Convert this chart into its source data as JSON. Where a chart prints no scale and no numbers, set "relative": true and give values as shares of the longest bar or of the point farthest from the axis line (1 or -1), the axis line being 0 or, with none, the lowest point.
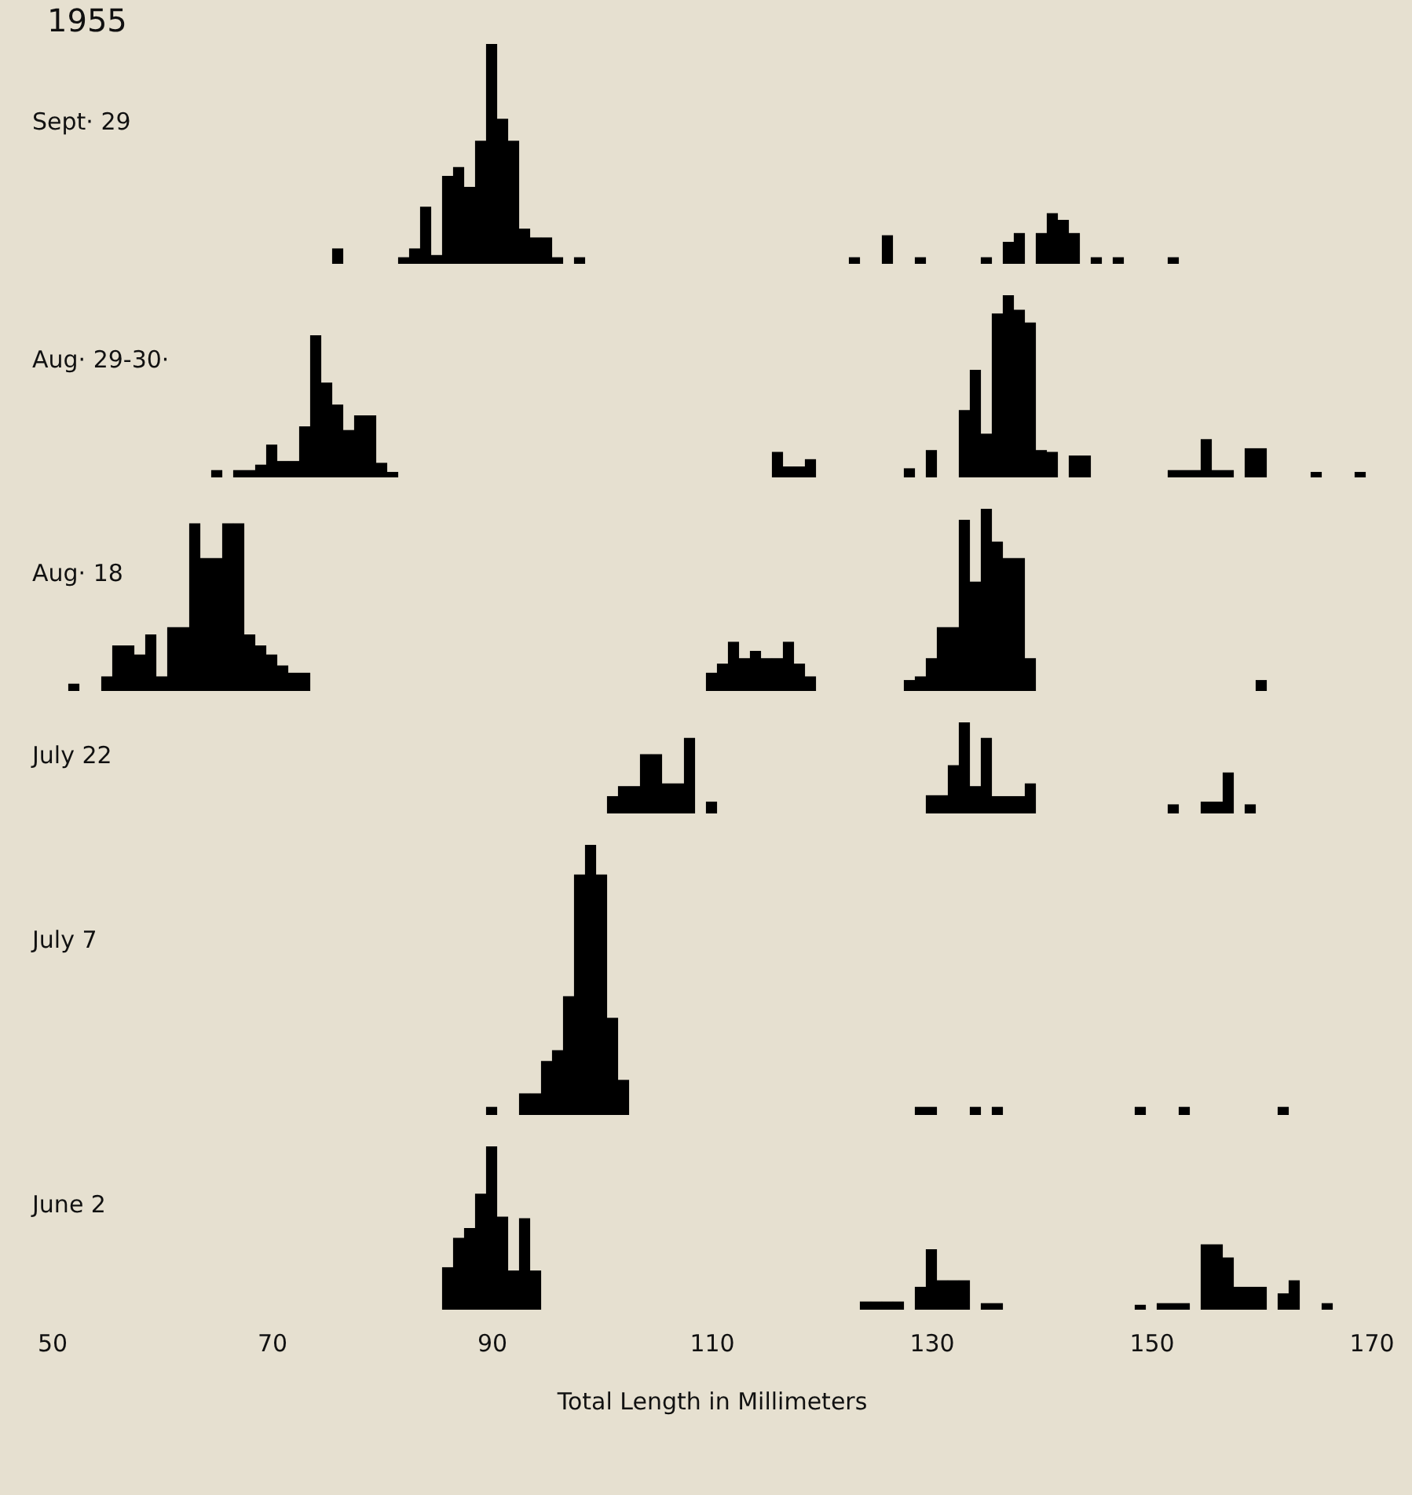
{
  "chart_data": [
    {
      "type": "bar",
      "title": "1955",
      "ylabel": "Sept· 29",
      "relative": true,
      "color": "#000000",
      "xlim": [
        50,
        170
      ],
      "xticks": [
        50,
        70,
        90,
        110,
        130,
        150,
        170
      ],
      "tick_labels": false,
      "x": [
        76,
        82,
        83,
        84,
        85,
        86,
        87,
        88,
        89,
        90,
        91,
        92,
        93,
        94,
        95,
        96,
        98,
        123,
        126,
        129,
        135,
        137,
        138,
        140,
        141,
        142,
        143,
        145,
        147,
        152
      ],
      "values": [
        0.07,
        0.03,
        0.07,
        0.26,
        0.04,
        0.4,
        0.44,
        0.35,
        0.56,
        1,
        0.66,
        0.56,
        0.16,
        0.12,
        0.12,
        0.03,
        0.03,
        0.03,
        0.13,
        0.03,
        0.03,
        0.1,
        0.14,
        0.14,
        0.23,
        0.2,
        0.14,
        0.03,
        0.03,
        0.03
      ]
    },
    {
      "type": "bar",
      "ylabel": "Aug· 29-30·",
      "relative": true,
      "color": "#000000",
      "xlim": [
        50,
        170
      ],
      "xticks": [
        50,
        70,
        90,
        110,
        130,
        150,
        170
      ],
      "tick_labels": false,
      "x": [
        65,
        67,
        68,
        69,
        70,
        71,
        72,
        73,
        74,
        75,
        76,
        77,
        78,
        79,
        80,
        81,
        116,
        117,
        118,
        119,
        128,
        130,
        133,
        134,
        135,
        136,
        137,
        138,
        139,
        140,
        141,
        143,
        144,
        152,
        153,
        154,
        155,
        156,
        157,
        159,
        160,
        165,
        169
      ],
      "values": [
        0.04,
        0.04,
        0.04,
        0.07,
        0.18,
        0.09,
        0.09,
        0.28,
        0.78,
        0.52,
        0.4,
        0.26,
        0.34,
        0.34,
        0.08,
        0.03,
        0.14,
        0.06,
        0.06,
        0.1,
        0.05,
        0.15,
        0.37,
        0.59,
        0.24,
        0.9,
        1,
        0.92,
        0.85,
        0.15,
        0.14,
        0.12,
        0.12,
        0.04,
        0.04,
        0.04,
        0.21,
        0.04,
        0.04,
        0.16,
        0.16,
        0.03,
        0.03
      ]
    },
    {
      "type": "bar",
      "ylabel": "Aug· 18",
      "relative": true,
      "color": "#000000",
      "xlim": [
        50,
        170
      ],
      "xticks": [
        50,
        70,
        90,
        110,
        130,
        150,
        170
      ],
      "tick_labels": false,
      "x": [
        52,
        55,
        56,
        57,
        58,
        59,
        60,
        61,
        62,
        63,
        64,
        65,
        66,
        67,
        68,
        69,
        70,
        71,
        72,
        73,
        110,
        111,
        112,
        113,
        114,
        115,
        116,
        117,
        118,
        119,
        128,
        129,
        130,
        131,
        132,
        133,
        134,
        135,
        136,
        137,
        138,
        139,
        160
      ],
      "values": [
        0.04,
        0.08,
        0.25,
        0.25,
        0.2,
        0.31,
        0.08,
        0.35,
        0.35,
        0.92,
        0.73,
        0.73,
        0.92,
        0.92,
        0.31,
        0.25,
        0.2,
        0.14,
        0.1,
        0.1,
        0.1,
        0.15,
        0.27,
        0.18,
        0.22,
        0.18,
        0.18,
        0.27,
        0.15,
        0.08,
        0.06,
        0.08,
        0.18,
        0.35,
        0.35,
        0.94,
        0.6,
        1,
        0.82,
        0.73,
        0.73,
        0.18,
        0.06
      ]
    },
    {
      "type": "bar",
      "ylabel": "July 22",
      "relative": true,
      "color": "#000000",
      "xlim": [
        50,
        170
      ],
      "xticks": [
        50,
        70,
        90,
        110,
        130,
        150,
        170
      ],
      "tick_labels": false,
      "x": [
        101,
        102,
        103,
        104,
        105,
        106,
        107,
        108,
        110,
        130,
        131,
        132,
        133,
        134,
        135,
        136,
        137,
        138,
        139,
        152,
        155,
        156,
        157,
        159
      ],
      "values": [
        0.19,
        0.3,
        0.3,
        0.65,
        0.65,
        0.33,
        0.33,
        0.83,
        0.13,
        0.2,
        0.2,
        0.53,
        1,
        0.3,
        0.83,
        0.19,
        0.19,
        0.19,
        0.33,
        0.1,
        0.13,
        0.13,
        0.45,
        0.1
      ]
    },
    {
      "type": "bar",
      "ylabel": "July 7",
      "relative": true,
      "color": "#000000",
      "xlim": [
        50,
        170
      ],
      "xticks": [
        50,
        70,
        90,
        110,
        130,
        150,
        170
      ],
      "tick_labels": false,
      "x": [
        90,
        93,
        94,
        95,
        96,
        97,
        98,
        99,
        100,
        101,
        102,
        129,
        130,
        134,
        136,
        149,
        153,
        162
      ],
      "values": [
        0.03,
        0.08,
        0.08,
        0.2,
        0.24,
        0.44,
        0.89,
        1,
        0.89,
        0.36,
        0.13,
        0.03,
        0.03,
        0.03,
        0.03,
        0.03,
        0.03,
        0.03
      ]
    },
    {
      "type": "bar",
      "ylabel": "June 2",
      "xlabel": "Total Length in Millimeters",
      "relative": true,
      "color": "#000000",
      "xlim": [
        50,
        170
      ],
      "xticks": [
        50,
        70,
        90,
        110,
        130,
        150,
        170
      ],
      "tick_labels": "x",
      "x": [
        86,
        87,
        88,
        89,
        90,
        91,
        92,
        93,
        94,
        124,
        125,
        126,
        127,
        129,
        130,
        131,
        132,
        133,
        135,
        136,
        149,
        151,
        152,
        153,
        155,
        156,
        157,
        158,
        159,
        160,
        162,
        163,
        166
      ],
      "values": [
        0.26,
        0.44,
        0.5,
        0.71,
        1,
        0.57,
        0.24,
        0.56,
        0.24,
        0.05,
        0.05,
        0.05,
        0.05,
        0.14,
        0.37,
        0.18,
        0.18,
        0.18,
        0.04,
        0.04,
        0.03,
        0.04,
        0.04,
        0.04,
        0.4,
        0.4,
        0.32,
        0.14,
        0.14,
        0.14,
        0.1,
        0.18,
        0.04
      ]
    }
  ]
}
